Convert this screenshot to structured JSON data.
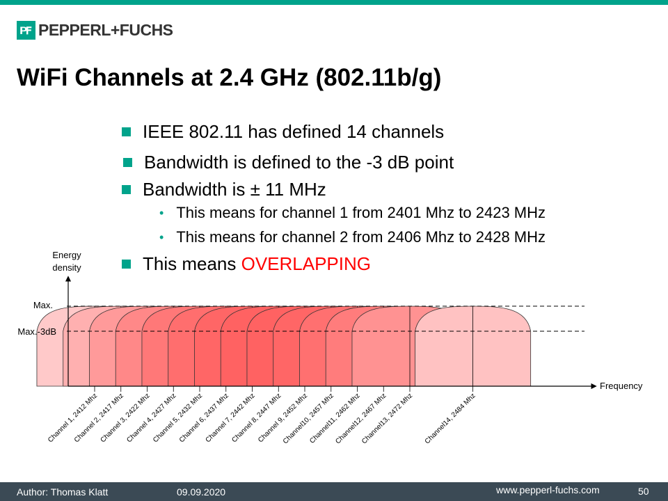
{
  "slide": {
    "brand": "PEPPERL+FUCHS",
    "title": "WiFi Channels at 2.4 GHz (802.11b/g)",
    "bullets": [
      "IEEE 802.11 has defined 14 channels",
      "Bandwidth is defined to the -3 dB point",
      "Bandwidth is ± 11 MHz"
    ],
    "sub_bullets": [
      "This means for channel 1 from 2401 Mhz to 2423 MHz",
      "This means for channel 2 from 2406 Mhz to 2428 MHz"
    ],
    "last_bullet_prefix": "This means ",
    "last_bullet_highlight": "OVERLAPPING"
  },
  "chart_data": {
    "type": "area",
    "ylabel_line1": "Energy",
    "ylabel_line2": "density",
    "xlabel": "Frequency",
    "level_labels": [
      "Max.",
      "Max.-3dB"
    ],
    "bandwidth_mhz": 22,
    "series": [
      {
        "name": "Channel 1, 2412 Mhz",
        "center": 2412
      },
      {
        "name": "Channel 2, 2417 Mhz",
        "center": 2417
      },
      {
        "name": "Channel 3, 2422 Mhz",
        "center": 2422
      },
      {
        "name": "Channel 4, 2427 Mhz",
        "center": 2427
      },
      {
        "name": "Channel 5, 2432 Mhz",
        "center": 2432
      },
      {
        "name": "Channel 6, 2437 Mhz",
        "center": 2437
      },
      {
        "name": "Channel 7, 2442 Mhz",
        "center": 2442
      },
      {
        "name": "Channel 8, 2447 Mhz",
        "center": 2447
      },
      {
        "name": "Channel 9, 2452 Mhz",
        "center": 2452
      },
      {
        "name": "Channel10, 2457 Mhz",
        "center": 2457
      },
      {
        "name": "Channel11, 2462 Mhz",
        "center": 2462
      },
      {
        "name": "Channel12, 2467 Mhz",
        "center": 2467
      },
      {
        "name": "Channel13, 2472 Mhz",
        "center": 2472
      },
      {
        "name": "Channel14, 2484 Mhz",
        "center": 2484
      }
    ]
  },
  "footer": {
    "author": "Author:  Thomas Klatt",
    "date": "09.09.2020",
    "url": "www.pepperl-fuchs.com",
    "page": "50"
  },
  "colors": {
    "accent": "#00a38b",
    "highlight": "#ff0000",
    "footer": "#3b4a55"
  }
}
